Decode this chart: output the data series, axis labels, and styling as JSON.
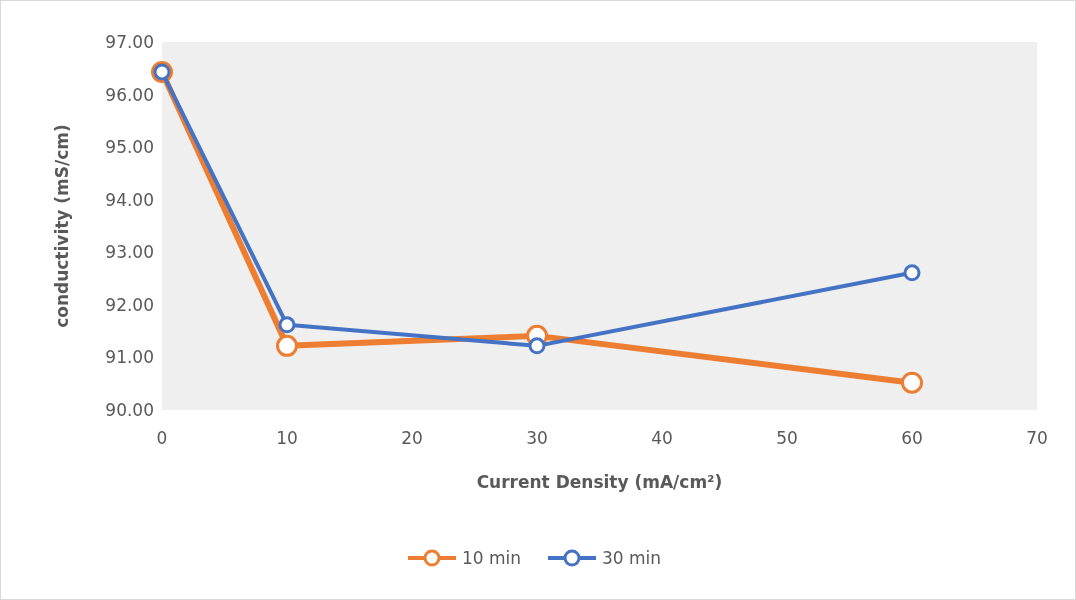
{
  "chart_data": {
    "type": "line",
    "xlabel": "Current Density (mA/cm²)",
    "ylabel": "conductivity (mS/cm)",
    "x": [
      0,
      10,
      30,
      60
    ],
    "series": [
      {
        "name": "10 min",
        "color": "#ed7d31",
        "values": [
          96.43,
          91.22,
          91.41,
          90.52
        ]
      },
      {
        "name": "30 min",
        "color": "#4472c4",
        "values": [
          96.43,
          91.62,
          91.22,
          92.61
        ]
      }
    ],
    "xlim": [
      0,
      70
    ],
    "xticks": [
      0,
      10,
      20,
      30,
      40,
      50,
      60,
      70
    ],
    "ylim": [
      90,
      97
    ],
    "yticks": [
      {
        "value": 90,
        "label": "90.00"
      },
      {
        "value": 91,
        "label": "91.00"
      },
      {
        "value": 92,
        "label": "92.00"
      },
      {
        "value": 93,
        "label": "93.00"
      },
      {
        "value": 94,
        "label": "94.00"
      },
      {
        "value": 95,
        "label": "95.00"
      },
      {
        "value": 96,
        "label": "96.00"
      },
      {
        "value": 97,
        "label": "97.00"
      }
    ],
    "grid": false,
    "legend": "bottom",
    "marker": "circle",
    "line_style": "solid"
  }
}
